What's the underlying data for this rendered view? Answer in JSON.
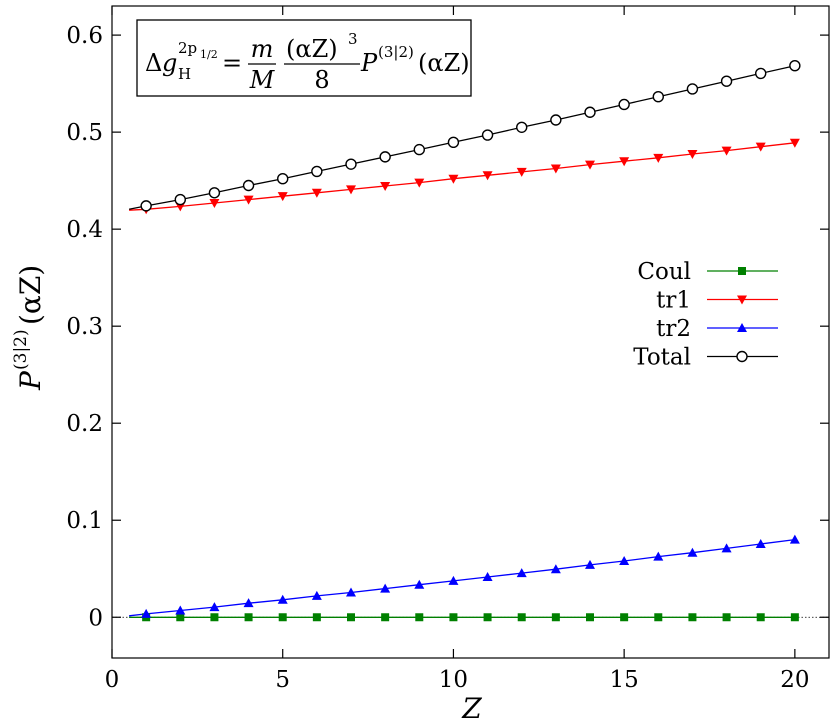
{
  "chart_data": {
    "type": "line",
    "title": "",
    "annotation": {
      "lhs_delta": "Δ",
      "lhs_g": "g",
      "lhs_sup": "2p",
      "lhs_sup_sub": "1/2",
      "lhs_sub": "H",
      "equals": "=",
      "frac1_num": "m",
      "frac1_den": "M",
      "frac2_num": "(αZ)",
      "frac2_num_exp": "3",
      "frac2_den": "8",
      "rhs_P": "P",
      "rhs_sup": "(3|2)",
      "rhs_arg": "(αZ)"
    },
    "xlabel": "Z",
    "ylabel": {
      "base": "P",
      "sup": "(3|2)",
      "arg": "(αZ)"
    },
    "xlim": [
      0,
      21
    ],
    "ylim": [
      -0.042,
      0.63
    ],
    "xticks": [
      0,
      5,
      10,
      15,
      20
    ],
    "xtick_labels": [
      "0",
      "5",
      "10",
      "15",
      "20"
    ],
    "yticks": [
      0,
      0.1,
      0.2,
      0.3,
      0.4,
      0.5,
      0.6
    ],
    "ytick_labels": [
      "0",
      "0.1",
      "0.2",
      "0.3",
      "0.4",
      "0.5",
      "0.6"
    ],
    "zero_line": true,
    "grid": false,
    "legend_position": "center-right",
    "x": [
      1,
      2,
      3,
      4,
      5,
      6,
      7,
      8,
      9,
      10,
      11,
      12,
      13,
      14,
      15,
      16,
      17,
      18,
      19,
      20
    ],
    "series": [
      {
        "name": "Coul",
        "color": "#008000",
        "marker": "square",
        "values": [
          0,
          0,
          0,
          0,
          0,
          0,
          0,
          0,
          0,
          0,
          0,
          0,
          0,
          0,
          0,
          0,
          0,
          0,
          0,
          0
        ],
        "curve_start": [
          0.5,
          0
        ]
      },
      {
        "name": "tr1",
        "color": "#ff0000",
        "marker": "triangle-down",
        "values": [
          0.4205,
          0.4235,
          0.427,
          0.4305,
          0.434,
          0.4375,
          0.441,
          0.4445,
          0.448,
          0.452,
          0.4555,
          0.459,
          0.4625,
          0.4665,
          0.47,
          0.4735,
          0.4775,
          0.481,
          0.485,
          0.489
        ],
        "curve_start": [
          0.5,
          0.4195
        ]
      },
      {
        "name": "tr2",
        "color": "#0000ff",
        "marker": "triangle-up",
        "values": [
          0.0035,
          0.007,
          0.0105,
          0.0145,
          0.018,
          0.022,
          0.0255,
          0.0295,
          0.0335,
          0.0375,
          0.0415,
          0.0455,
          0.0495,
          0.054,
          0.058,
          0.0625,
          0.0665,
          0.071,
          0.0755,
          0.08
        ],
        "curve_start": [
          0.5,
          0.0015
        ]
      },
      {
        "name": "Total",
        "color": "#000000",
        "marker": "circle-open",
        "values": [
          0.424,
          0.4305,
          0.4375,
          0.445,
          0.452,
          0.4595,
          0.467,
          0.4745,
          0.482,
          0.4895,
          0.497,
          0.505,
          0.5125,
          0.5205,
          0.5285,
          0.5365,
          0.5445,
          0.5525,
          0.5605,
          0.5685
        ],
        "curve_start": [
          0.5,
          0.4205
        ]
      }
    ]
  }
}
